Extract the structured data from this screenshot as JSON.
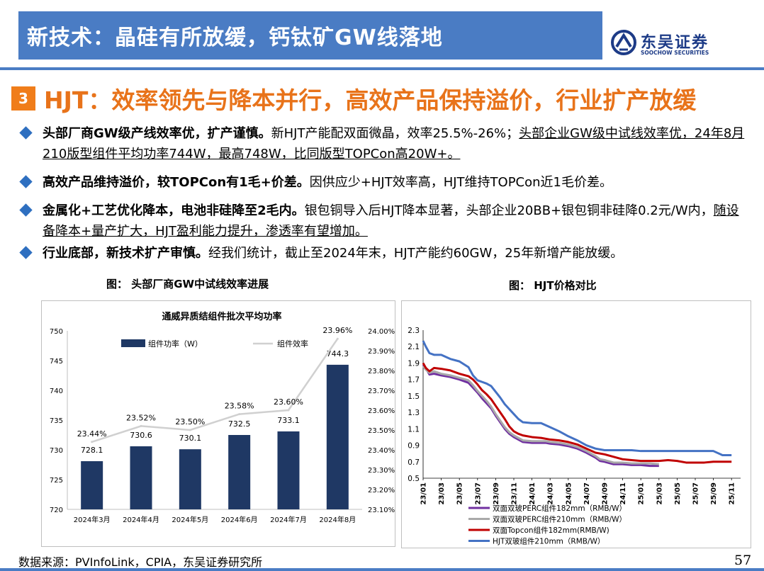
{
  "header": {
    "title": "新技术：晶硅有所放缓，钙钛矿GW线落地",
    "logo_cn": "东吴证券",
    "logo_en": "SOOCHOW SECURITIES"
  },
  "section": {
    "number": "3",
    "title": "HJT：效率领先与降本并行，高效产品保持溢价，行业扩产放缓"
  },
  "bullets": [
    {
      "bold": "头部厂商GW级产线效率优，扩产谨慎。",
      "normal": "新HJT产能配双面微晶，效率25.5%-26%；",
      "underline": "头部企业GW级中试线效率优，24年8月210版型组件平均功率744W，最高748W，比同版型TOPCon高20W+。"
    },
    {
      "bold": "高效产品维持溢价，较TOPCon有1毛+价差。",
      "normal": "因供应少+HJT效率高，HJT维持TOPCon近1毛价差。"
    },
    {
      "bold": "金属化+工艺优化降本，电池非硅降至2毛内。",
      "normal": "银包铜导入后HJT降本显著，头部企业20BB+银包铜非硅降0.2元/W内，",
      "underline": "随设备降本+量产扩大，HJT盈利能力提升，渗透率有望增加。"
    },
    {
      "bold": "行业底部，新技术扩产审慎。",
      "normal": "经我们统计，截止至2024年末，HJT产能约60GW，25年新增产能放缓。"
    }
  ],
  "figure_left": {
    "caption": "图：  头部厂商GW中试线效率进展"
  },
  "figure_right": {
    "caption": "图：  HJT价格对比"
  },
  "chart_data": [
    {
      "type": "bar",
      "title": "通威异质结组件批次平均功率",
      "categories": [
        "2024年3月",
        "2024年4月",
        "2024年5月",
        "2024年6月",
        "2024年7月",
        "2024年8月"
      ],
      "series": [
        {
          "name": "组件功率（W）",
          "type": "bar",
          "axis": "left",
          "values": [
            728.1,
            730.6,
            730.1,
            732.5,
            733.1,
            744.3
          ],
          "labels": [
            "728.1",
            "730.6",
            "730.1",
            "732.5",
            "733.1",
            "744.3"
          ],
          "color": "#1f3864"
        },
        {
          "name": "组件效率",
          "type": "line",
          "axis": "right",
          "values": [
            23.44,
            23.52,
            23.5,
            23.58,
            23.6,
            23.96
          ],
          "labels": [
            "23.44%",
            "23.52%",
            "23.50%",
            "23.58%",
            "23.60%",
            "23.96%"
          ],
          "color": "#d0d0d0"
        }
      ],
      "ylim": [
        720,
        750
      ],
      "yticks": [
        "720",
        "725",
        "730",
        "735",
        "740",
        "745",
        "750"
      ],
      "y2lim": [
        23.1,
        24.0
      ],
      "y2ticks": [
        "23.10%",
        "23.20%",
        "23.30%",
        "23.40%",
        "23.50%",
        "23.60%",
        "23.70%",
        "23.80%",
        "23.90%",
        "24.00%"
      ],
      "legend": "top",
      "grid": false
    },
    {
      "type": "line",
      "x_ticks": [
        "23/01",
        "23/03",
        "23/05",
        "23/07",
        "23/09",
        "23/11",
        "24/01",
        "24/03",
        "24/05",
        "24/07",
        "24/09",
        "24/11",
        "25/01",
        "25/03",
        "25/05",
        "25/07",
        "25/09",
        "25/11"
      ],
      "x_range": [
        "23/01",
        "25/12"
      ],
      "ylim": [
        0.5,
        2.3
      ],
      "yticks": [
        "0.5",
        "0.7",
        "0.9",
        "1.1",
        "1.3",
        "1.5",
        "1.7",
        "1.9",
        "2.1",
        "2.3"
      ],
      "grid": false,
      "legend": "bottom",
      "series": [
        {
          "name": "双面双玻PERC组件182mm（RMB/W）",
          "color": "#7030a0",
          "x": [
            0,
            0.3,
            0.7,
            1.2,
            2,
            3,
            4,
            5,
            5.5,
            6,
            6.5,
            7,
            7.5,
            8,
            8.5,
            9,
            9.5,
            10,
            10.5,
            11,
            12,
            13,
            13.5,
            14,
            15,
            16,
            17,
            18,
            19,
            19.5,
            20,
            21,
            22,
            23,
            24,
            25,
            26
          ],
          "y": [
            1.88,
            1.84,
            1.76,
            1.77,
            1.75,
            1.73,
            1.7,
            1.66,
            1.6,
            1.54,
            1.47,
            1.41,
            1.35,
            1.26,
            1.18,
            1.1,
            1.04,
            1.0,
            0.97,
            0.94,
            0.93,
            0.93,
            0.93,
            0.92,
            0.91,
            0.89,
            0.86,
            0.81,
            0.75,
            0.71,
            0.7,
            0.67,
            0.67,
            0.66,
            0.66,
            0.65,
            0.65
          ]
        },
        {
          "name": "双面双玻PERC组件210mm（RMB/W）",
          "color": "#a9a9a9",
          "x": [
            0,
            0.3,
            0.7,
            1.2,
            2,
            3,
            4,
            5,
            5.5,
            6,
            6.5,
            7,
            7.5,
            8,
            8.5,
            9,
            9.5,
            10,
            10.5,
            11,
            12,
            13,
            13.5,
            14,
            15,
            16,
            17,
            18,
            19,
            19.5,
            20,
            21,
            22,
            23,
            24,
            25,
            26
          ],
          "y": [
            1.86,
            1.82,
            1.78,
            1.8,
            1.77,
            1.75,
            1.72,
            1.69,
            1.63,
            1.56,
            1.5,
            1.44,
            1.37,
            1.28,
            1.2,
            1.12,
            1.06,
            1.02,
            0.99,
            0.96,
            0.95,
            0.95,
            0.95,
            0.94,
            0.93,
            0.91,
            0.88,
            0.83,
            0.77,
            0.73,
            0.72,
            0.69,
            0.69,
            0.68,
            0.68,
            0.68,
            0.67
          ]
        },
        {
          "name": "双面Topcon组件182mm(RMB/W)",
          "color": "#c00000",
          "x": [
            0,
            0.3,
            0.7,
            1.2,
            2,
            3,
            4,
            5,
            5.5,
            6,
            6.5,
            7,
            7.5,
            8,
            8.5,
            9,
            9.5,
            10,
            10.5,
            11,
            12,
            13,
            14,
            15,
            16,
            17,
            18,
            19,
            20,
            21,
            22,
            23,
            24,
            25,
            26,
            27,
            28,
            29,
            30,
            31,
            32,
            33,
            34
          ],
          "y": [
            1.9,
            1.84,
            1.8,
            1.84,
            1.83,
            1.81,
            1.77,
            1.74,
            1.7,
            1.64,
            1.57,
            1.52,
            1.46,
            1.38,
            1.3,
            1.22,
            1.13,
            1.07,
            1.04,
            1.02,
            1.0,
            0.99,
            0.97,
            0.96,
            0.94,
            0.91,
            0.86,
            0.81,
            0.79,
            0.76,
            0.73,
            0.72,
            0.71,
            0.71,
            0.71,
            0.72,
            0.71,
            0.69,
            0.69,
            0.69,
            0.7,
            0.7,
            0.7
          ]
        },
        {
          "name": "HJT双玻组件210mm（RMB/W）",
          "color": "#4472c4",
          "x": [
            0,
            0.3,
            0.7,
            1.2,
            2,
            3,
            4,
            5,
            5.5,
            6,
            6.5,
            7,
            7.5,
            8,
            8.5,
            9,
            9.5,
            10,
            10.5,
            11,
            12,
            13,
            14,
            15,
            16,
            17,
            18,
            19,
            20,
            21,
            22,
            23,
            24,
            25,
            26,
            27,
            28,
            29,
            30,
            31,
            32,
            33,
            34
          ],
          "y": [
            2.17,
            2.1,
            2.02,
            2.0,
            2.0,
            1.95,
            1.92,
            1.85,
            1.75,
            1.69,
            1.67,
            1.65,
            1.62,
            1.55,
            1.48,
            1.4,
            1.34,
            1.28,
            1.22,
            1.18,
            1.17,
            1.17,
            1.12,
            1.07,
            1.01,
            0.96,
            0.9,
            0.86,
            0.84,
            0.84,
            0.84,
            0.84,
            0.83,
            0.83,
            0.83,
            0.83,
            0.83,
            0.83,
            0.83,
            0.83,
            0.83,
            0.78,
            0.78
          ]
        }
      ]
    }
  ],
  "footer": {
    "source": "数据来源：PVInfoLink，CPIA，东吴证券研究所",
    "page": "57"
  }
}
